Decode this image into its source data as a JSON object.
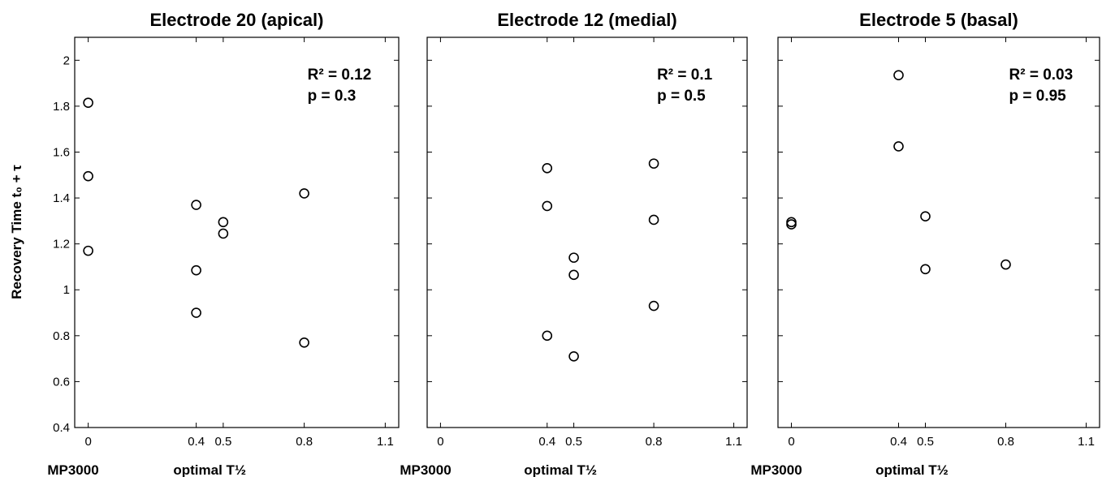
{
  "chart_data": [
    {
      "type": "scatter",
      "title": "Electrode 20 (apical)",
      "ylabel": "Recovery Time t₀ + τ",
      "xlabel_left": "MP3000",
      "xlabel_right": "optimal T½",
      "xticks": [
        0,
        0.4,
        0.5,
        0.8,
        1.1
      ],
      "xlim": [
        -0.05,
        1.15
      ],
      "ylim": [
        0.4,
        2.1
      ],
      "yticks": [
        0.4,
        0.6,
        0.8,
        1,
        1.2,
        1.4,
        1.6,
        1.8,
        2
      ],
      "r2_text": "R² = 0.12",
      "p_text": "p = 0.3",
      "points": [
        {
          "x": 0,
          "y": 1.815
        },
        {
          "x": 0,
          "y": 1.495
        },
        {
          "x": 0,
          "y": 1.17
        },
        {
          "x": 0.4,
          "y": 1.37
        },
        {
          "x": 0.4,
          "y": 1.085
        },
        {
          "x": 0.4,
          "y": 0.9
        },
        {
          "x": 0.5,
          "y": 1.295
        },
        {
          "x": 0.5,
          "y": 1.245
        },
        {
          "x": 0.8,
          "y": 1.42
        },
        {
          "x": 0.8,
          "y": 0.77
        }
      ]
    },
    {
      "type": "scatter",
      "title": "Electrode 12 (medial)",
      "xlabel_left": "MP3000",
      "xlabel_right": "optimal T½",
      "xticks": [
        0,
        0.4,
        0.5,
        0.8,
        1.1
      ],
      "xlim": [
        -0.05,
        1.15
      ],
      "ylim": [
        0.4,
        2.1
      ],
      "r2_text": "R² = 0.1",
      "p_text": "p = 0.5",
      "points": [
        {
          "x": 0.4,
          "y": 1.53
        },
        {
          "x": 0.4,
          "y": 1.365
        },
        {
          "x": 0.4,
          "y": 0.8
        },
        {
          "x": 0.5,
          "y": 1.14
        },
        {
          "x": 0.5,
          "y": 1.065
        },
        {
          "x": 0.5,
          "y": 0.71
        },
        {
          "x": 0.8,
          "y": 1.55
        },
        {
          "x": 0.8,
          "y": 1.305
        },
        {
          "x": 0.8,
          "y": 0.93
        }
      ]
    },
    {
      "type": "scatter",
      "title": "Electrode 5 (basal)",
      "xlabel_left": "MP3000",
      "xlabel_right": "optimal T½",
      "xticks": [
        0,
        0.4,
        0.5,
        0.8,
        1.1
      ],
      "xlim": [
        -0.05,
        1.15
      ],
      "ylim": [
        0.4,
        2.1
      ],
      "r2_text": "R² = 0.03",
      "p_text": "p = 0.95",
      "points": [
        {
          "x": 0,
          "y": 1.295
        },
        {
          "x": 0,
          "y": 1.285
        },
        {
          "x": 0.4,
          "y": 1.935
        },
        {
          "x": 0.4,
          "y": 1.625
        },
        {
          "x": 0.5,
          "y": 1.32
        },
        {
          "x": 0.5,
          "y": 1.09
        },
        {
          "x": 0.8,
          "y": 1.11
        }
      ]
    }
  ]
}
